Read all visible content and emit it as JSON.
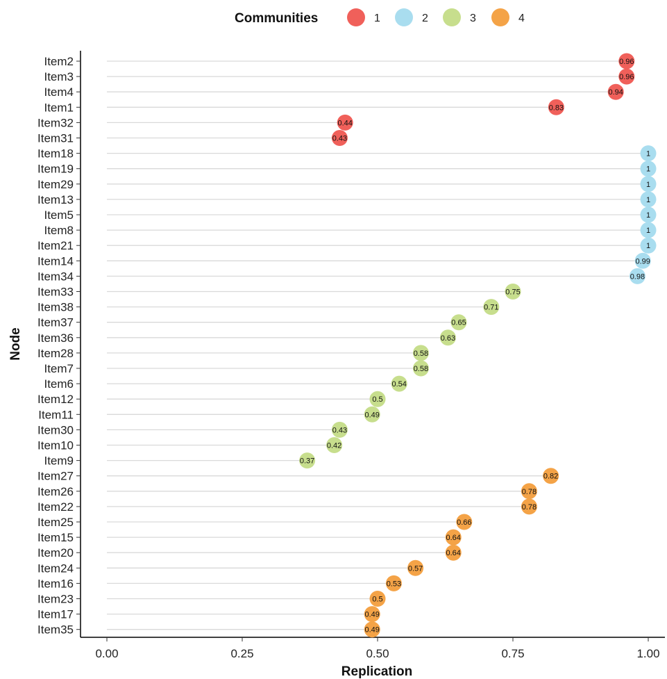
{
  "chart_data": {
    "type": "scatter",
    "title": "",
    "xlabel": "Replication",
    "ylabel": "Node",
    "xlim": [
      0,
      1
    ],
    "x_ticks": [
      0,
      0.25,
      0.5,
      0.75,
      1
    ],
    "x_tick_labels": [
      "0.00",
      "0.25",
      "0.50",
      "0.75",
      "1.00"
    ],
    "grid": false,
    "legend": {
      "title": "Communities",
      "placement": "top"
    },
    "series": [
      {
        "name": "1",
        "color": "#F0605A"
      },
      {
        "name": "2",
        "color": "#A9DDEF"
      },
      {
        "name": "3",
        "color": "#C7DE8D"
      },
      {
        "name": "4",
        "color": "#F4A347"
      }
    ],
    "points": [
      {
        "node": "Item2",
        "value": 0.96,
        "label": "0.96",
        "community": "1"
      },
      {
        "node": "Item3",
        "value": 0.96,
        "label": "0.96",
        "community": "1"
      },
      {
        "node": "Item4",
        "value": 0.94,
        "label": "0.94",
        "community": "1"
      },
      {
        "node": "Item1",
        "value": 0.83,
        "label": "0.83",
        "community": "1"
      },
      {
        "node": "Item32",
        "value": 0.44,
        "label": "0.44",
        "community": "1"
      },
      {
        "node": "Item31",
        "value": 0.43,
        "label": "0.43",
        "community": "1"
      },
      {
        "node": "Item18",
        "value": 1,
        "label": "1",
        "community": "2"
      },
      {
        "node": "Item19",
        "value": 1,
        "label": "1",
        "community": "2"
      },
      {
        "node": "Item29",
        "value": 1,
        "label": "1",
        "community": "2"
      },
      {
        "node": "Item13",
        "value": 1,
        "label": "1",
        "community": "2"
      },
      {
        "node": "Item5",
        "value": 1,
        "label": "1",
        "community": "2"
      },
      {
        "node": "Item8",
        "value": 1,
        "label": "1",
        "community": "2"
      },
      {
        "node": "Item21",
        "value": 1,
        "label": "1",
        "community": "2"
      },
      {
        "node": "Item14",
        "value": 0.99,
        "label": "0.99",
        "community": "2"
      },
      {
        "node": "Item34",
        "value": 0.98,
        "label": "0.98",
        "community": "2"
      },
      {
        "node": "Item33",
        "value": 0.75,
        "label": "0.75",
        "community": "3"
      },
      {
        "node": "Item38",
        "value": 0.71,
        "label": "0.71",
        "community": "3"
      },
      {
        "node": "Item37",
        "value": 0.65,
        "label": "0.65",
        "community": "3"
      },
      {
        "node": "Item36",
        "value": 0.63,
        "label": "0.63",
        "community": "3"
      },
      {
        "node": "Item28",
        "value": 0.58,
        "label": "0.58",
        "community": "3"
      },
      {
        "node": "Item7",
        "value": 0.58,
        "label": "0.58",
        "community": "3"
      },
      {
        "node": "Item6",
        "value": 0.54,
        "label": "0.54",
        "community": "3"
      },
      {
        "node": "Item12",
        "value": 0.5,
        "label": "0.5",
        "community": "3"
      },
      {
        "node": "Item11",
        "value": 0.49,
        "label": "0.49",
        "community": "3"
      },
      {
        "node": "Item30",
        "value": 0.43,
        "label": "0.43",
        "community": "3"
      },
      {
        "node": "Item10",
        "value": 0.42,
        "label": "0.42",
        "community": "3"
      },
      {
        "node": "Item9",
        "value": 0.37,
        "label": "0.37",
        "community": "3"
      },
      {
        "node": "Item27",
        "value": 0.82,
        "label": "0.82",
        "community": "4"
      },
      {
        "node": "Item26",
        "value": 0.78,
        "label": "0.78",
        "community": "4"
      },
      {
        "node": "Item22",
        "value": 0.78,
        "label": "0.78",
        "community": "4"
      },
      {
        "node": "Item25",
        "value": 0.66,
        "label": "0.66",
        "community": "4"
      },
      {
        "node": "Item15",
        "value": 0.64,
        "label": "0.64",
        "community": "4"
      },
      {
        "node": "Item20",
        "value": 0.64,
        "label": "0.64",
        "community": "4"
      },
      {
        "node": "Item24",
        "value": 0.57,
        "label": "0.57",
        "community": "4"
      },
      {
        "node": "Item16",
        "value": 0.53,
        "label": "0.53",
        "community": "4"
      },
      {
        "node": "Item23",
        "value": 0.5,
        "label": "0.5",
        "community": "4"
      },
      {
        "node": "Item17",
        "value": 0.49,
        "label": "0.49",
        "community": "4"
      },
      {
        "node": "Item35",
        "value": 0.49,
        "label": "0.49",
        "community": "4"
      }
    ]
  }
}
